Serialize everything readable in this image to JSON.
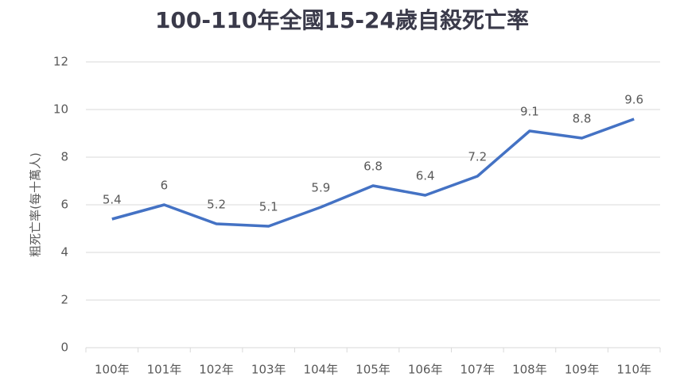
{
  "chart_data": {
    "type": "line",
    "title": "100-110年全國15-24歲自殺死亡率",
    "y_label": "粗死亡率(每十萬人)",
    "categories": [
      "100年",
      "101年",
      "102年",
      "103年",
      "104年",
      "105年",
      "106年",
      "107年",
      "108年",
      "109年",
      "110年"
    ],
    "values": [
      5.4,
      6,
      5.2,
      5.1,
      5.9,
      6.8,
      6.4,
      7.2,
      9.1,
      8.8,
      9.6
    ],
    "color": "#4472c4",
    "ylim": [
      0,
      12
    ],
    "yticks": [
      0,
      2,
      4,
      6,
      8,
      10,
      12
    ],
    "grid": true,
    "data_labels": true
  }
}
